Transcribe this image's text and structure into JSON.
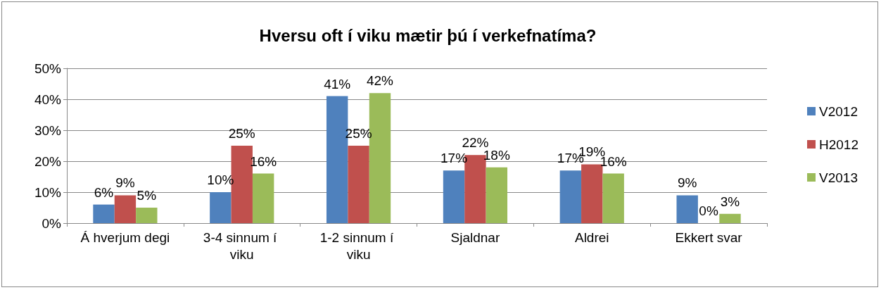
{
  "chart_data": {
    "type": "bar",
    "title": "Hversu oft í viku mætir þú í verkefnatíma?",
    "categories": [
      "Á hverjum degi",
      "3-4 sinnum í viku",
      "1-2 sinnum í viku",
      "Sjaldnar",
      "Aldrei",
      "Ekkert svar"
    ],
    "series": [
      {
        "name": "V2012",
        "color": "#4f81bd",
        "values": [
          6,
          10,
          41,
          17,
          17,
          9
        ],
        "value_labels": [
          "6%",
          "10%",
          "41%",
          "17%",
          "17%",
          "9%"
        ]
      },
      {
        "name": "H2012",
        "color": "#c0504d",
        "values": [
          9,
          25,
          25,
          22,
          19,
          0
        ],
        "value_labels": [
          "9%",
          "25%",
          "25%",
          "22%",
          "19%",
          "0%"
        ]
      },
      {
        "name": "V2013",
        "color": "#9bbb59",
        "values": [
          5,
          16,
          42,
          18,
          16,
          3
        ],
        "value_labels": [
          "5%",
          "16%",
          "42%",
          "18%",
          "16%",
          "3%"
        ]
      }
    ],
    "ylim": [
      0,
      50
    ],
    "yticks": [
      {
        "value": 0,
        "label": "0%"
      },
      {
        "value": 10,
        "label": "10%"
      },
      {
        "value": 20,
        "label": "20%"
      },
      {
        "value": 30,
        "label": "30%"
      },
      {
        "value": 40,
        "label": "40%"
      },
      {
        "value": 50,
        "label": "50%"
      }
    ],
    "grid": "y",
    "legend": "right"
  }
}
